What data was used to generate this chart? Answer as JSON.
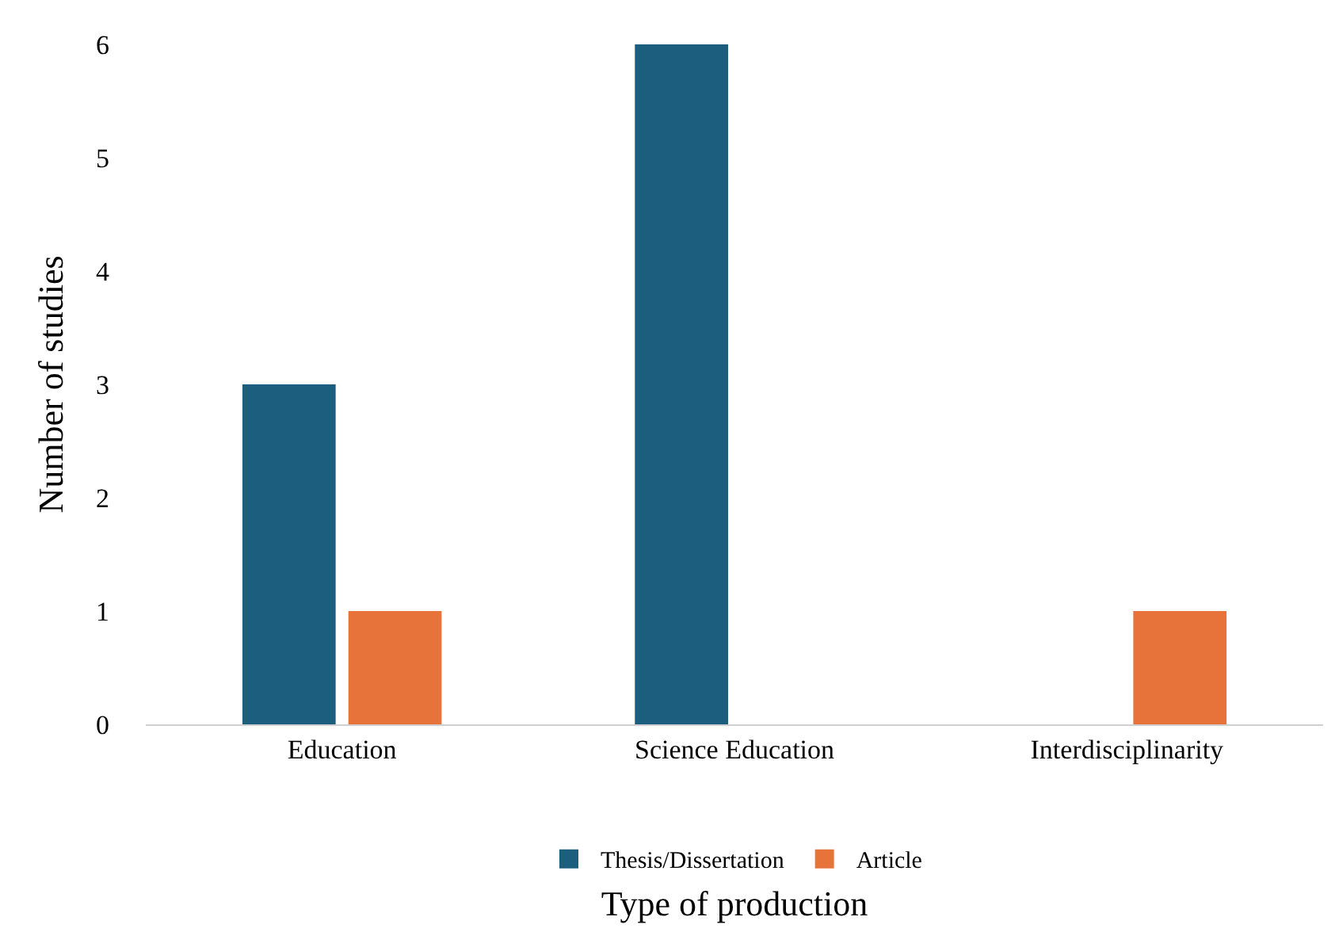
{
  "chart_data": {
    "type": "bar",
    "xlabel": "Type of production",
    "ylabel": "Number of studies",
    "categories": [
      "Education",
      "Science Education",
      "Interdisciplinarity"
    ],
    "series": [
      {
        "name": "Thesis/Dissertation",
        "color": "#1b5e7e",
        "values": [
          3,
          6,
          0
        ]
      },
      {
        "name": "Article",
        "color": "#e8733a",
        "values": [
          1,
          0,
          1
        ]
      }
    ],
    "ylim": [
      0,
      6
    ],
    "yticks": [
      0,
      1,
      2,
      3,
      4,
      5,
      6
    ],
    "grid": false,
    "legend": "bottom"
  }
}
